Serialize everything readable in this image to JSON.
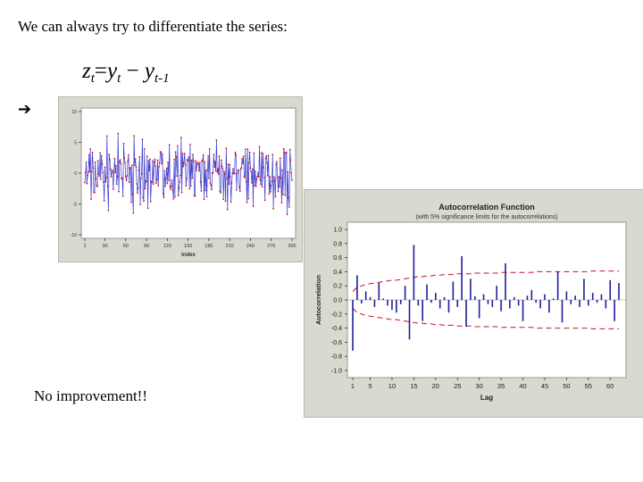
{
  "slide": {
    "intro_text": "We can always try to differentiate the series:",
    "formula": {
      "z": "z",
      "z_sub": "t",
      "eq": "=",
      "y1": "y",
      "y1_sub": "t",
      "minus": " − ",
      "y2": "y",
      "y2_sub": "t-1"
    },
    "arrow_glyph": "➔",
    "conclusion": "No improvement!!"
  },
  "chart_data": [
    {
      "type": "line",
      "title": "",
      "xlabel": "Index",
      "ylabel": "",
      "xlim": [
        1,
        300
      ],
      "ylim": [
        -10,
        10
      ],
      "x_ticks": [
        1,
        30,
        60,
        90,
        120,
        150,
        180,
        210,
        240,
        270,
        300
      ],
      "y_ticks": [
        -10,
        -5,
        0,
        5,
        10
      ],
      "line_color": "#3a3ad0",
      "marker_color": "#c8102e",
      "n_points": 300,
      "value_range": [
        -8.5,
        7.5
      ],
      "grid": false
    },
    {
      "type": "bar",
      "title": "Autocorrelation Function",
      "subtitle": "(with 5% significance limits for the autocorrelations)",
      "xlabel": "Lag",
      "ylabel": "Autocorrelation",
      "ylim": [
        -1.0,
        1.0
      ],
      "y_ticks": [
        "1.0",
        "0.8",
        "0.6",
        "0.4",
        "0.2",
        "0.0",
        "-0.2",
        "-0.4",
        "-0.6",
        "-0.8",
        "-1.0"
      ],
      "x_ticks": [
        1,
        5,
        10,
        15,
        20,
        25,
        30,
        35,
        40,
        45,
        50,
        55,
        60
      ],
      "bar_color": "#1f1f9a",
      "limit_color": "#c8102e",
      "lags": [
        1,
        2,
        3,
        4,
        5,
        6,
        7,
        8,
        9,
        10,
        11,
        12,
        13,
        14,
        15,
        16,
        17,
        18,
        19,
        20,
        21,
        22,
        23,
        24,
        25,
        26,
        27,
        28,
        29,
        30,
        31,
        32,
        33,
        34,
        35,
        36,
        37,
        38,
        39,
        40,
        41,
        42,
        43,
        44,
        45,
        46,
        47,
        48,
        49,
        50,
        51,
        52,
        53,
        54,
        55,
        56,
        57,
        58,
        59,
        60,
        61,
        62
      ],
      "values": [
        -0.72,
        0.35,
        -0.05,
        0.12,
        0.04,
        -0.1,
        0.24,
        0.02,
        -0.08,
        -0.14,
        -0.18,
        -0.06,
        0.2,
        -0.56,
        0.78,
        -0.08,
        -0.3,
        0.22,
        -0.04,
        0.1,
        -0.12,
        0.04,
        -0.18,
        0.26,
        -0.1,
        0.62,
        -0.38,
        0.3,
        0.05,
        -0.26,
        0.08,
        -0.06,
        -0.1,
        0.2,
        -0.16,
        0.52,
        -0.12,
        0.04,
        -0.08,
        -0.3,
        0.06,
        0.14,
        -0.04,
        -0.12,
        0.08,
        -0.18,
        0.02,
        0.4,
        -0.32,
        0.12,
        -0.06,
        0.06,
        -0.1,
        0.3,
        -0.08,
        0.1,
        -0.04,
        0.08,
        -0.12,
        0.28,
        -0.3,
        0.24
      ],
      "significance_upper": [
        0.12,
        0.18,
        0.2,
        0.22,
        0.23,
        0.24,
        0.25,
        0.26,
        0.27,
        0.28,
        0.28,
        0.29,
        0.3,
        0.31,
        0.32,
        0.33,
        0.33,
        0.34,
        0.34,
        0.35,
        0.35,
        0.36,
        0.36,
        0.36,
        0.37,
        0.37,
        0.37,
        0.37,
        0.38,
        0.38,
        0.38,
        0.38,
        0.38,
        0.38,
        0.39,
        0.39,
        0.39,
        0.39,
        0.39,
        0.39,
        0.39,
        0.39,
        0.4,
        0.4,
        0.4,
        0.4,
        0.4,
        0.4,
        0.4,
        0.4,
        0.4,
        0.4,
        0.4,
        0.4,
        0.4,
        0.41,
        0.41,
        0.41,
        0.41,
        0.41,
        0.41,
        0.41
      ],
      "grid": false
    }
  ]
}
